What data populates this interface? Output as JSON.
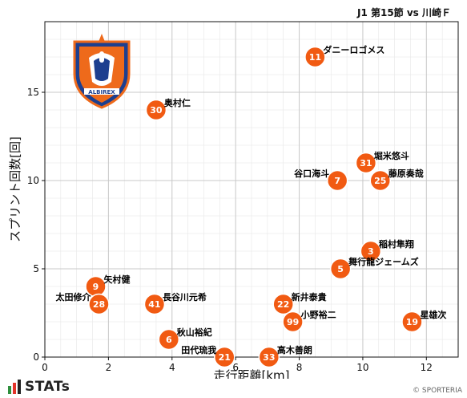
{
  "header": {
    "title": "J1 第15節 vs 川崎Ｆ"
  },
  "footer": {
    "brand": "STATs",
    "copyright": "© SPORTERIA"
  },
  "colors": {
    "marker": "#f15a12",
    "marker_edge": "#ffffff",
    "grid": "#c8c8c8",
    "logo_orange": "#ee6a1b",
    "logo_blue": "#1d3f8f"
  },
  "logo": {
    "icon": "albirex-niigata-crest"
  },
  "chart_data": {
    "type": "scatter",
    "xlabel": "走行距離[km]",
    "ylabel": "スプリント回数[回]",
    "xlim": [
      0,
      13
    ],
    "ylim": [
      0,
      19
    ],
    "xticks": [
      0,
      2,
      4,
      6,
      8,
      10,
      12
    ],
    "yticks": [
      0,
      5,
      10,
      15
    ],
    "grid": true,
    "points": [
      {
        "number": "11",
        "name": "ダニーロゴメス",
        "x": 8.5,
        "y": 17,
        "label_pos": "right"
      },
      {
        "number": "30",
        "name": "奥村仁",
        "x": 3.5,
        "y": 14,
        "label_pos": "right"
      },
      {
        "number": "31",
        "name": "堀米悠斗",
        "x": 10.1,
        "y": 11,
        "label_pos": "right"
      },
      {
        "number": "7",
        "name": "谷口海斗",
        "x": 9.2,
        "y": 10,
        "label_pos": "left"
      },
      {
        "number": "25",
        "name": "藤原奏哉",
        "x": 10.55,
        "y": 10,
        "label_pos": "right"
      },
      {
        "number": "3",
        "name": "稲村隼翔",
        "x": 10.25,
        "y": 6,
        "label_pos": "right"
      },
      {
        "number": "5",
        "name": "舞行龍ジェームズ",
        "x": 9.3,
        "y": 5,
        "label_pos": "right"
      },
      {
        "number": "9",
        "name": "矢村健",
        "x": 1.6,
        "y": 4,
        "label_pos": "right"
      },
      {
        "number": "28",
        "name": "太田修介",
        "x": 1.7,
        "y": 3,
        "label_pos": "left"
      },
      {
        "number": "41",
        "name": "長谷川元希",
        "x": 3.45,
        "y": 3,
        "label_pos": "right"
      },
      {
        "number": "22",
        "name": "新井泰貴",
        "x": 7.5,
        "y": 3,
        "label_pos": "right"
      },
      {
        "number": "99",
        "name": "小野裕二",
        "x": 7.8,
        "y": 2,
        "label_pos": "right"
      },
      {
        "number": "19",
        "name": "星雄次",
        "x": 11.55,
        "y": 2,
        "label_pos": "right"
      },
      {
        "number": "6",
        "name": "秋山裕紀",
        "x": 3.9,
        "y": 1,
        "label_pos": "right"
      },
      {
        "number": "21",
        "name": "田代琉我",
        "x": 5.65,
        "y": 0,
        "label_pos": "left"
      },
      {
        "number": "33",
        "name": "高木善朗",
        "x": 7.05,
        "y": 0,
        "label_pos": "right"
      }
    ]
  }
}
